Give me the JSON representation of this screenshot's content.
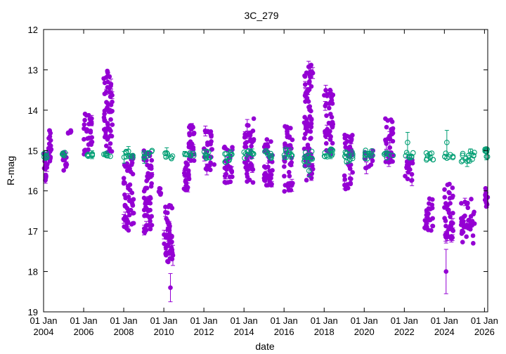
{
  "chart_data": {
    "type": "scatter",
    "title": "3C_279",
    "xlabel": "date",
    "ylabel": "R-mag",
    "x_axis": {
      "scale": "date",
      "range": [
        "2004-01-01",
        "2026-03-01"
      ],
      "ticks": [
        {
          "date": "2004-01-01",
          "line1": "01 Jan",
          "line2": "2004"
        },
        {
          "date": "2006-01-01",
          "line1": "01 Jan",
          "line2": "2006"
        },
        {
          "date": "2008-01-01",
          "line1": "01 Jan",
          "line2": "2008"
        },
        {
          "date": "2010-01-01",
          "line1": "01 Jan",
          "line2": "2010"
        },
        {
          "date": "2012-01-01",
          "line1": "01 Jan",
          "line2": "2012"
        },
        {
          "date": "2014-01-01",
          "line1": "01 Jan",
          "line2": "2014"
        },
        {
          "date": "2016-01-01",
          "line1": "01 Jan",
          "line2": "2016"
        },
        {
          "date": "2018-01-01",
          "line1": "01 Jan",
          "line2": "2018"
        },
        {
          "date": "2020-01-01",
          "line1": "01 Jan",
          "line2": "2020"
        },
        {
          "date": "2022-01-01",
          "line1": "01 Jan",
          "line2": "2022"
        },
        {
          "date": "2024-01-01",
          "line1": "01 Jan",
          "line2": "2024"
        },
        {
          "date": "2026-01-01",
          "line1": "01 Jan",
          "line2": "2026"
        }
      ]
    },
    "y_axis": {
      "range": [
        12,
        19
      ],
      "inverted": true,
      "ticks": [
        12,
        13,
        14,
        15,
        16,
        17,
        18,
        19
      ]
    },
    "grid": false,
    "legend": "none",
    "colors": {
      "target": "#9400d3",
      "comparison": "#009e73"
    },
    "series": [
      {
        "marker": "filled-circle",
        "color": "#9400d3",
        "segments": [
          {
            "start": "2004-01-01",
            "end": "2004-03-10",
            "low": 15.0,
            "high": 15.5
          },
          {
            "start": "2004-02-01",
            "end": "2004-02-20",
            "low": 15.6,
            "high": 15.8
          },
          {
            "start": "2004-04-01",
            "end": "2004-05-20",
            "low": 14.5,
            "high": 15.3
          },
          {
            "start": "2004-12-01",
            "end": "2005-03-01",
            "low": 15.0,
            "high": 15.5
          },
          {
            "start": "2005-03-01",
            "end": "2005-06-01",
            "low": 14.5,
            "high": 14.6
          },
          {
            "start": "2006-01-01",
            "end": "2006-06-10",
            "low": 14.0,
            "high": 15.1
          },
          {
            "start": "2007-01-01",
            "end": "2007-06-10",
            "low": 13.0,
            "high": 15.1
          },
          {
            "start": "2008-01-01",
            "end": "2008-07-01",
            "low": 15.1,
            "high": 17.0
          },
          {
            "start": "2009-01-01",
            "end": "2009-06-10",
            "low": 15.0,
            "high": 17.2
          },
          {
            "start": "2009-10-01",
            "end": "2009-11-10",
            "low": 15.9,
            "high": 16.1
          },
          {
            "start": "2010-01-01",
            "end": "2010-06-10",
            "low": 16.3,
            "high": 17.6
          },
          {
            "start": "2010-03-01",
            "end": "2010-06-10",
            "low": 17.1,
            "high": 17.8
          },
          {
            "start": "2011-01-01",
            "end": "2011-04-10",
            "low": 15.3,
            "high": 16.0
          },
          {
            "start": "2011-04-01",
            "end": "2011-07-10",
            "low": 14.3,
            "high": 15.3
          },
          {
            "start": "2012-01-01",
            "end": "2012-06-10",
            "low": 14.5,
            "high": 15.2
          },
          {
            "start": "2012-02-01",
            "end": "2012-07-10",
            "low": 15.3,
            "high": 15.5
          },
          {
            "start": "2013-01-01",
            "end": "2013-06-10",
            "low": 14.8,
            "high": 15.8
          },
          {
            "start": "2014-01-01",
            "end": "2014-07-01",
            "low": 14.2,
            "high": 15.8
          },
          {
            "start": "2015-01-01",
            "end": "2015-06-10",
            "low": 14.7,
            "high": 15.9
          },
          {
            "start": "2016-01-01",
            "end": "2016-06-10",
            "low": 14.4,
            "high": 16.1
          },
          {
            "start": "2017-01-01",
            "end": "2017-06-10",
            "low": 12.8,
            "high": 15.8
          },
          {
            "start": "2018-01-01",
            "end": "2018-06-10",
            "low": 13.5,
            "high": 15.1
          },
          {
            "start": "2019-01-01",
            "end": "2019-06-10",
            "low": 14.6,
            "high": 16.0
          },
          {
            "start": "2020-01-01",
            "end": "2020-06-10",
            "low": 15.0,
            "high": 15.5
          },
          {
            "start": "2021-01-01",
            "end": "2021-06-10",
            "low": 14.1,
            "high": 15.3
          },
          {
            "start": "2022-01-01",
            "end": "2022-06-10",
            "low": 15.2,
            "high": 15.8
          },
          {
            "start": "2023-01-01",
            "end": "2023-06-10",
            "low": 16.1,
            "high": 17.0
          },
          {
            "start": "2024-01-01",
            "end": "2024-06-10",
            "low": 15.8,
            "high": 17.2
          },
          {
            "start": "2024-11-01",
            "end": "2025-07-10",
            "low": 16.2,
            "high": 17.3
          },
          {
            "start": "2026-01-01",
            "end": "2026-02-28",
            "low": 15.9,
            "high": 16.4
          }
        ],
        "points": [
          {
            "date": "2010-05-01",
            "mag": 18.4,
            "err": 0.35
          },
          {
            "date": "2024-02-01",
            "mag": 18.0,
            "err": 0.55
          },
          {
            "date": "2010-06-15",
            "mag": 17.6,
            "err": 0.25
          }
        ]
      },
      {
        "marker": "open-circle",
        "color": "#009e73",
        "segments": [
          {
            "start": "2004-01-01",
            "end": "2004-03-10",
            "low": 15.05,
            "high": 15.2
          },
          {
            "start": "2004-12-01",
            "end": "2005-03-01",
            "low": 15.05,
            "high": 15.2
          },
          {
            "start": "2006-01-01",
            "end": "2006-06-10",
            "low": 15.05,
            "high": 15.15
          },
          {
            "start": "2007-01-01",
            "end": "2007-06-10",
            "low": 15.05,
            "high": 15.15
          },
          {
            "start": "2008-01-01",
            "end": "2008-07-01",
            "low": 15.0,
            "high": 15.2
          },
          {
            "start": "2009-01-01",
            "end": "2009-06-10",
            "low": 15.0,
            "high": 15.2
          },
          {
            "start": "2010-01-01",
            "end": "2010-06-10",
            "low": 15.05,
            "high": 15.2
          },
          {
            "start": "2011-01-01",
            "end": "2011-07-10",
            "low": 15.05,
            "high": 15.15
          },
          {
            "start": "2012-01-01",
            "end": "2012-06-10",
            "low": 15.0,
            "high": 15.2
          },
          {
            "start": "2013-01-01",
            "end": "2013-06-10",
            "low": 15.0,
            "high": 15.3
          },
          {
            "start": "2014-01-01",
            "end": "2014-07-01",
            "low": 15.0,
            "high": 15.2
          },
          {
            "start": "2015-01-01",
            "end": "2015-06-10",
            "low": 15.0,
            "high": 15.2
          },
          {
            "start": "2016-01-01",
            "end": "2016-06-10",
            "low": 14.95,
            "high": 15.2
          },
          {
            "start": "2017-01-01",
            "end": "2017-06-10",
            "low": 15.0,
            "high": 15.4
          },
          {
            "start": "2018-01-01",
            "end": "2018-06-10",
            "low": 14.9,
            "high": 15.2
          },
          {
            "start": "2019-01-01",
            "end": "2019-06-10",
            "low": 15.0,
            "high": 15.3
          },
          {
            "start": "2020-01-01",
            "end": "2020-06-10",
            "low": 14.95,
            "high": 15.2
          },
          {
            "start": "2021-01-01",
            "end": "2021-06-10",
            "low": 15.05,
            "high": 15.2
          },
          {
            "start": "2022-01-01",
            "end": "2022-06-10",
            "low": 15.05,
            "high": 15.2
          },
          {
            "start": "2023-01-01",
            "end": "2023-06-10",
            "low": 15.05,
            "high": 15.25
          },
          {
            "start": "2024-01-01",
            "end": "2024-06-10",
            "low": 15.05,
            "high": 15.2
          },
          {
            "start": "2024-11-01",
            "end": "2025-07-10",
            "low": 15.0,
            "high": 15.3
          },
          {
            "start": "2026-01-01",
            "end": "2026-02-28",
            "low": 14.95,
            "high": 15.2
          }
        ],
        "points": [
          {
            "date": "2022-03-01",
            "mag": 14.8,
            "err": 0.25
          },
          {
            "date": "2024-02-15",
            "mag": 14.8,
            "err": 0.3
          },
          {
            "date": "2017-04-01",
            "mag": 15.5,
            "err": 0.15
          }
        ]
      }
    ]
  }
}
